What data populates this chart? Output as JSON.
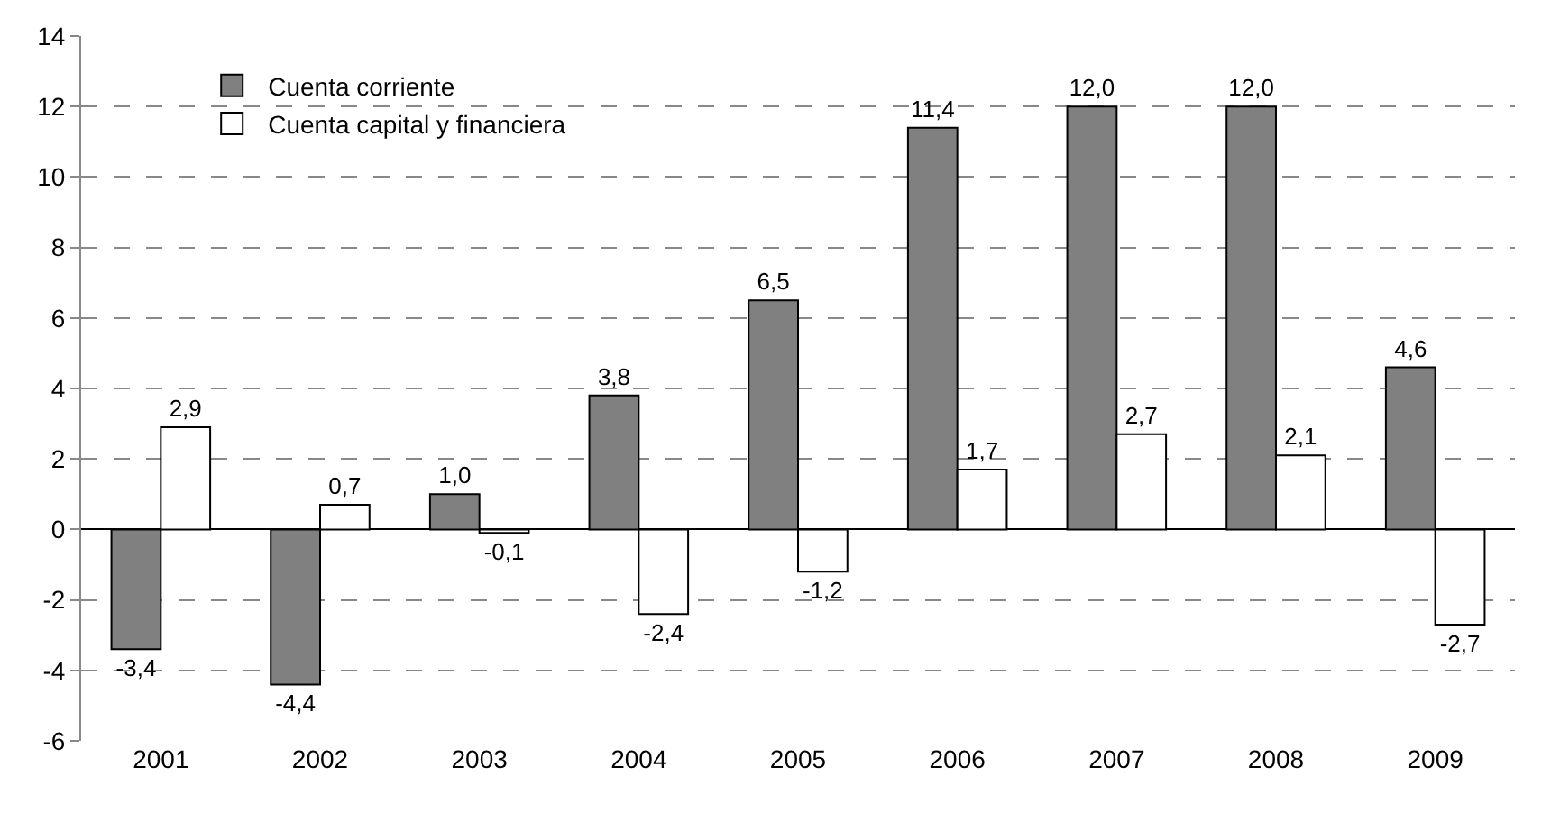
{
  "chart_data": {
    "type": "bar",
    "categories": [
      "2001",
      "2002",
      "2003",
      "2004",
      "2005",
      "2006",
      "2007",
      "2008",
      "2009"
    ],
    "series": [
      {
        "name": "Cuenta corriente",
        "color": "#808080",
        "values": [
          -3.4,
          -4.4,
          1.0,
          3.8,
          6.5,
          11.4,
          12.0,
          12.0,
          4.6
        ],
        "value_labels": [
          "-3,4",
          "-4,4",
          "1,0",
          "3,8",
          "6,5",
          "11,4",
          "12,0",
          "12,0",
          "4,6"
        ]
      },
      {
        "name": "Cuenta capital y financiera",
        "color": "#ffffff",
        "values": [
          2.9,
          0.7,
          -0.1,
          -2.4,
          -1.2,
          1.7,
          2.7,
          2.1,
          -2.7
        ],
        "value_labels": [
          "2,9",
          "0,7",
          "-0,1",
          "-2,4",
          "-1,2",
          "1,7",
          "2,7",
          "2,1",
          "-2,7"
        ]
      }
    ],
    "ylim": [
      -6,
      14
    ],
    "yticks": [
      -6,
      -4,
      -2,
      0,
      2,
      4,
      6,
      8,
      10,
      12,
      14
    ],
    "grid": "y",
    "legend": "top left"
  }
}
